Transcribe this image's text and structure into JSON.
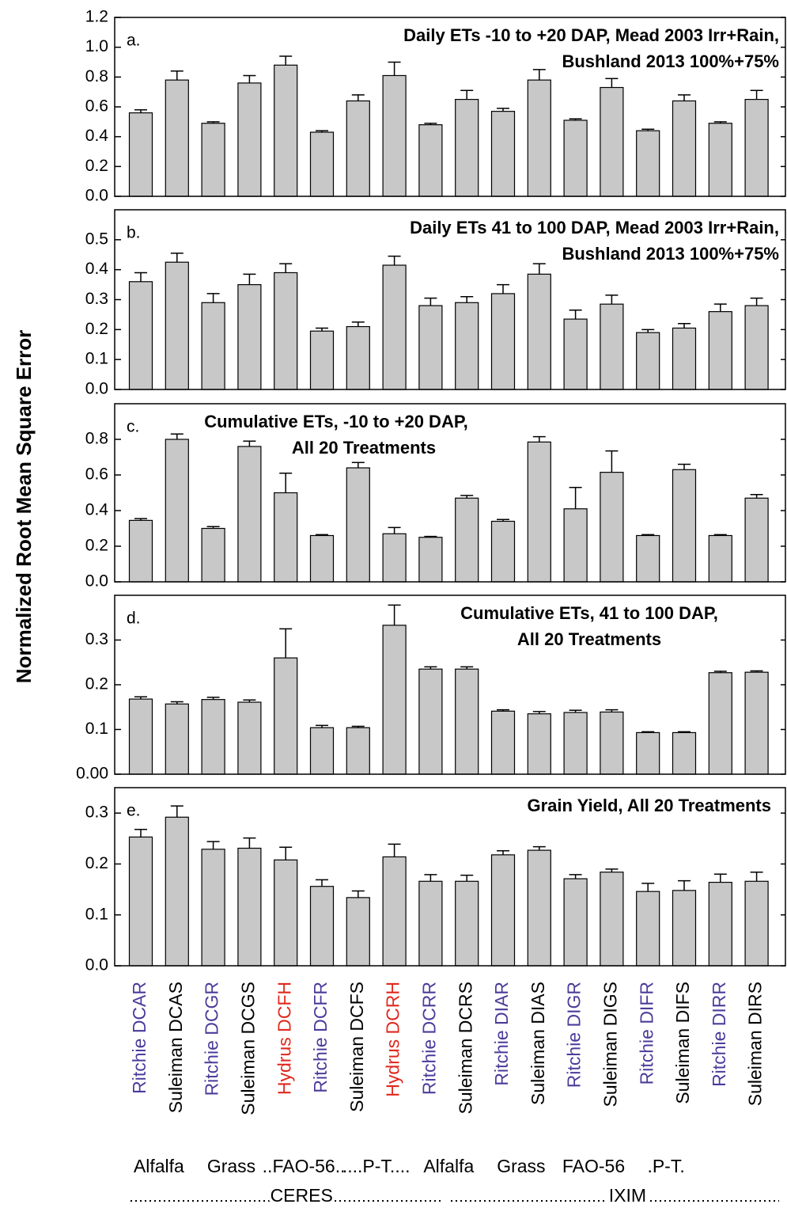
{
  "y_label": "Normalized Root Mean Square Error",
  "x_axis": {
    "categories": [
      "Ritchie DCAR",
      "Suleiman DCAS",
      "Ritchie DCGR",
      "Suleiman DCGS",
      "Hydrus DCFH",
      "Ritchie DCFR",
      "Suleiman DCFS",
      "Hydrus DCRH",
      "Ritchie DCRR",
      "Suleiman DCRS",
      "Ritchie DIAR",
      "Suleiman DIAS",
      "Ritchie DIGR",
      "Suleiman DIGS",
      "Ritchie DIFR",
      "Suleiman DIFS",
      "Ritchie DIRR",
      "Suleiman DIRS"
    ],
    "category_colors": [
      "#4b3b9a",
      "#000000",
      "#4b3b9a",
      "#000000",
      "#e0281e",
      "#4b3b9a",
      "#000000",
      "#e0281e",
      "#4b3b9a",
      "#000000",
      "#4b3b9a",
      "#000000",
      "#4b3b9a",
      "#000000",
      "#4b3b9a",
      "#000000",
      "#4b3b9a",
      "#000000"
    ],
    "groups": [
      "Alfalfa",
      "Grass",
      "..FAO-56..",
      "....P-T....",
      "Alfalfa",
      "Grass",
      "FAO-56",
      ".P-T."
    ],
    "super_groups": [
      "CERES",
      "IXIM"
    ]
  },
  "chart_data": [
    {
      "type": "bar",
      "label": "a.",
      "title": [
        "Daily ETs -10 to +20 DAP, Mead 2003 Irr+Rain,",
        "Bushland 2013 100%+75%"
      ],
      "color": "#c8c8c8",
      "values": [
        0.56,
        0.78,
        0.49,
        0.76,
        0.88,
        0.43,
        0.64,
        0.81,
        0.48,
        0.65,
        0.57,
        0.78,
        0.51,
        0.73,
        0.44,
        0.64,
        0.49,
        0.65
      ],
      "errors": [
        0.02,
        0.06,
        0.01,
        0.05,
        0.06,
        0.01,
        0.04,
        0.09,
        0.01,
        0.06,
        0.02,
        0.07,
        0.01,
        0.06,
        0.01,
        0.04,
        0.01,
        0.06
      ],
      "ylim": [
        0,
        1.2
      ],
      "yticks": [
        {
          "value": 0,
          "label": "0.0"
        },
        0.2,
        0.4,
        0.6,
        0.8,
        {
          "value": 1,
          "label": "1.0"
        },
        1.2
      ]
    },
    {
      "type": "bar",
      "label": "b.",
      "title": [
        "Daily ETs 41 to 100 DAP, Mead 2003 Irr+Rain,",
        "Bushland 2013 100%+75%"
      ],
      "color": "#c8c8c8",
      "values": [
        0.36,
        0.425,
        0.29,
        0.35,
        0.39,
        0.195,
        0.21,
        0.415,
        0.28,
        0.29,
        0.32,
        0.385,
        0.235,
        0.285,
        0.19,
        0.205,
        0.26,
        0.28
      ],
      "errors": [
        0.03,
        0.03,
        0.03,
        0.035,
        0.03,
        0.01,
        0.015,
        0.03,
        0.025,
        0.02,
        0.03,
        0.035,
        0.03,
        0.03,
        0.01,
        0.015,
        0.025,
        0.025
      ],
      "ylim": [
        0,
        0.6
      ],
      "yticks": [
        {
          "value": 0,
          "label": "0.0"
        },
        0.1,
        0.2,
        0.3,
        0.4,
        0.5
      ]
    },
    {
      "type": "bar",
      "label": "c.",
      "title": [
        "Cumulative ETs, -10 to +20 DAP,",
        "All 20 Treatments"
      ],
      "color": "#c8c8c8",
      "values": [
        0.345,
        0.8,
        0.3,
        0.76,
        0.5,
        0.26,
        0.64,
        0.27,
        0.25,
        0.47,
        0.34,
        0.785,
        0.41,
        0.615,
        0.26,
        0.63,
        0.26,
        0.47
      ],
      "errors": [
        0.01,
        0.03,
        0.01,
        0.03,
        0.11,
        0.005,
        0.03,
        0.035,
        0.005,
        0.015,
        0.01,
        0.03,
        0.12,
        0.12,
        0.005,
        0.03,
        0.005,
        0.02
      ],
      "ylim": [
        0,
        1
      ],
      "yticks": [
        {
          "value": 0,
          "label": "0.0"
        },
        0.2,
        0.4,
        0.6,
        0.8
      ]
    },
    {
      "type": "bar",
      "label": "d.",
      "title": [
        "Cumulative ETs, 41 to 100 DAP,",
        "All 20 Treatments"
      ],
      "color": "#c8c8c8",
      "values": [
        0.168,
        0.157,
        0.167,
        0.161,
        0.26,
        0.104,
        0.104,
        0.333,
        0.235,
        0.235,
        0.141,
        0.135,
        0.138,
        0.139,
        0.093,
        0.093,
        0.227,
        0.228
      ],
      "errors": [
        0.005,
        0.005,
        0.005,
        0.005,
        0.065,
        0.005,
        0.003,
        0.045,
        0.005,
        0.005,
        0.003,
        0.005,
        0.005,
        0.005,
        0.002,
        0.002,
        0.003,
        0.003
      ],
      "ylim": [
        0,
        0.4
      ],
      "yticks": [
        {
          "value": 0,
          "label": "0.00"
        },
        0.1,
        0.2,
        0.3
      ]
    },
    {
      "type": "bar",
      "label": "e.",
      "title": [
        "Grain Yield, All 20 Treatments"
      ],
      "color": "#c8c8c8",
      "values": [
        0.253,
        0.292,
        0.229,
        0.231,
        0.208,
        0.156,
        0.134,
        0.214,
        0.166,
        0.166,
        0.218,
        0.227,
        0.171,
        0.184,
        0.146,
        0.148,
        0.164,
        0.166
      ],
      "errors": [
        0.015,
        0.022,
        0.015,
        0.02,
        0.025,
        0.013,
        0.013,
        0.025,
        0.013,
        0.012,
        0.008,
        0.007,
        0.008,
        0.006,
        0.016,
        0.019,
        0.016,
        0.018
      ],
      "ylim": [
        0,
        0.35
      ],
      "yticks": [
        {
          "value": 0,
          "label": "0.0"
        },
        0.1,
        0.2,
        0.3
      ]
    }
  ]
}
